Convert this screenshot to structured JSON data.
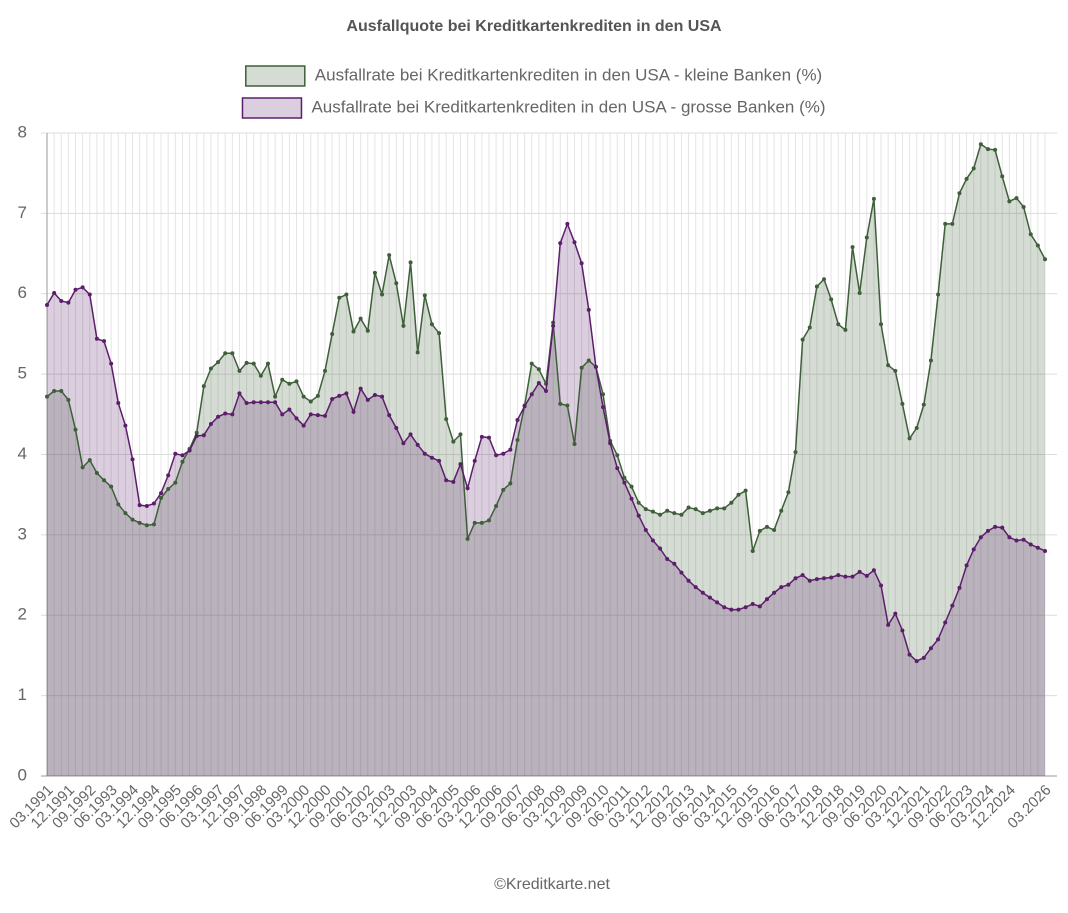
{
  "chart_data": {
    "type": "area",
    "title": "Ausfallquote bei Kreditkartenkrediten in den USA",
    "source": "©Kreditkarte.net",
    "categories": [
      "03.1991",
      null,
      null,
      "12.1991",
      null,
      null,
      "09.1992",
      null,
      null,
      "06.1993",
      null,
      null,
      "03.1994",
      null,
      null,
      "12.1994",
      null,
      null,
      "09.1995",
      null,
      null,
      "06.1996",
      null,
      null,
      "03.1997",
      null,
      null,
      "12.1997",
      null,
      null,
      "09.1998",
      null,
      null,
      "06.1999",
      null,
      null,
      "03.2000",
      null,
      null,
      "12.2000",
      null,
      null,
      "09.2001",
      null,
      null,
      "06.2002",
      null,
      null,
      "03.2003",
      null,
      null,
      "12.2003",
      null,
      null,
      "09.2004",
      null,
      null,
      "06.2005",
      null,
      null,
      "03.2006",
      null,
      null,
      "12.2006",
      null,
      null,
      "09.2007",
      null,
      null,
      "06.2008",
      null,
      null,
      "03.2009",
      null,
      null,
      "12.2009",
      null,
      null,
      "09.2010",
      null,
      null,
      "06.2011",
      null,
      null,
      "03.2012",
      null,
      null,
      "12.2012",
      null,
      null,
      "09.2013",
      null,
      null,
      "06.2014",
      null,
      null,
      "03.2015",
      null,
      null,
      "12.2015",
      null,
      null,
      "09.2016",
      null,
      null,
      "06.2017",
      null,
      null,
      "03.2018",
      null,
      null,
      "12.2018",
      null,
      null,
      "09.2019",
      null,
      null,
      "06.2020",
      null,
      null,
      "03.2021",
      null,
      null,
      "12.2021",
      null,
      null,
      "09.2022",
      null,
      null,
      "06.2023",
      null,
      null,
      "03.2024",
      null,
      null,
      "12.2024",
      null,
      null,
      null,
      null,
      "03.2026"
    ],
    "series": [
      {
        "name": "Ausfallrate bei Kreditkartenkrediten in den USA - kleine Banken (%)",
        "color": "#3f5f3a",
        "values": [
          4.72,
          4.79,
          4.79,
          4.68,
          4.31,
          3.84,
          3.93,
          3.77,
          3.68,
          3.6,
          3.38,
          3.27,
          3.19,
          3.15,
          3.12,
          3.13,
          3.46,
          3.57,
          3.65,
          3.91,
          4.07,
          4.27,
          4.85,
          5.07,
          5.15,
          5.26,
          5.26,
          5.04,
          5.14,
          5.13,
          4.98,
          5.13,
          4.72,
          4.93,
          4.88,
          4.91,
          4.72,
          4.66,
          4.73,
          5.04,
          5.5,
          5.95,
          5.99,
          5.53,
          5.69,
          5.54,
          6.26,
          5.99,
          6.48,
          6.13,
          5.6,
          6.39,
          5.27,
          5.98,
          5.62,
          5.51,
          4.44,
          4.16,
          4.25,
          2.95,
          3.15,
          3.15,
          3.18,
          3.36,
          3.56,
          3.64,
          4.18,
          4.61,
          5.13,
          5.06,
          4.88,
          5.64,
          4.63,
          4.61,
          4.13,
          5.08,
          5.17,
          5.09,
          4.75,
          4.17,
          3.99,
          3.71,
          3.6,
          3.4,
          3.32,
          3.29,
          3.25,
          3.3,
          3.27,
          3.25,
          3.34,
          3.32,
          3.27,
          3.3,
          3.33,
          3.33,
          3.4,
          3.5,
          3.55,
          2.8,
          3.05,
          3.1,
          3.06,
          3.3,
          3.53,
          4.03,
          5.43,
          5.58,
          6.09,
          6.18,
          5.93,
          5.62,
          5.55,
          6.58,
          6.01,
          6.7,
          7.18,
          5.62,
          5.11,
          5.04,
          4.63,
          4.2,
          4.33,
          4.62,
          5.17,
          5.99,
          6.87,
          6.87,
          7.25,
          7.43,
          7.56,
          7.86,
          7.8,
          7.79,
          7.46,
          7.15,
          7.19,
          7.08,
          6.74,
          6.6,
          6.43
        ]
      },
      {
        "name": "Ausfallrate bei Kreditkartenkrediten in den USA - grosse Banken (%)",
        "color": "#5c1e6b",
        "values": [
          5.86,
          6.01,
          5.91,
          5.89,
          6.05,
          6.08,
          5.99,
          5.44,
          5.41,
          5.13,
          4.64,
          4.36,
          3.94,
          3.37,
          3.36,
          3.39,
          3.52,
          3.74,
          4.01,
          3.99,
          4.05,
          4.23,
          4.24,
          4.38,
          4.47,
          4.51,
          4.5,
          4.76,
          4.64,
          4.65,
          4.65,
          4.65,
          4.65,
          4.5,
          4.56,
          4.45,
          4.36,
          4.5,
          4.49,
          4.48,
          4.69,
          4.73,
          4.76,
          4.53,
          4.82,
          4.68,
          4.74,
          4.72,
          4.49,
          4.33,
          4.14,
          4.25,
          4.12,
          4.01,
          3.96,
          3.92,
          3.68,
          3.66,
          3.88,
          3.58,
          3.92,
          4.22,
          4.21,
          3.99,
          4.01,
          4.06,
          4.43,
          4.6,
          4.75,
          4.89,
          4.79,
          5.6,
          6.63,
          6.87,
          6.64,
          6.38,
          5.8,
          5.09,
          4.59,
          4.14,
          3.83,
          3.65,
          3.45,
          3.24,
          3.06,
          2.93,
          2.83,
          2.7,
          2.64,
          2.53,
          2.43,
          2.35,
          2.28,
          2.22,
          2.16,
          2.1,
          2.07,
          2.07,
          2.1,
          2.14,
          2.11,
          2.2,
          2.28,
          2.35,
          2.38,
          2.46,
          2.5,
          2.43,
          2.45,
          2.46,
          2.47,
          2.5,
          2.48,
          2.48,
          2.54,
          2.49,
          2.56,
          2.37,
          1.88,
          2.02,
          1.81,
          1.51,
          1.43,
          1.47,
          1.59,
          1.7,
          1.91,
          2.12,
          2.34,
          2.62,
          2.82,
          2.97,
          3.05,
          3.1,
          3.09,
          2.97,
          2.93,
          2.94,
          2.88,
          2.84,
          2.8
        ]
      }
    ],
    "ylim": [
      0,
      8
    ],
    "yticks": [
      0,
      1,
      2,
      3,
      4,
      5,
      6,
      7,
      8
    ],
    "grid": true
  }
}
